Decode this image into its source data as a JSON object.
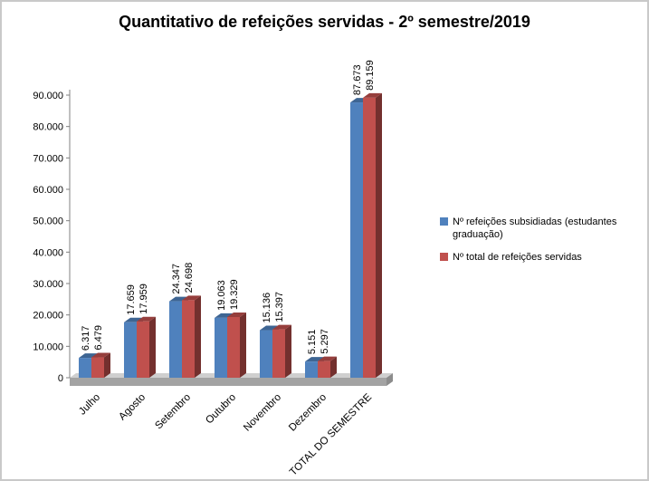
{
  "title": "Quantitativo de refeições servidas - 2º semestre/2019",
  "chart_data": {
    "type": "bar",
    "style": "3d-clustered-column",
    "title": "Quantitativo de refeições servidas - 2º semestre/2019",
    "categories": [
      "Julho",
      "Agosto",
      "Setembro",
      "Outubro",
      "Novembro",
      "Dezembro",
      "TOTAL DO SEMESTRE"
    ],
    "series": [
      {
        "name": "Nº refeições subsidiadas (estudantes graduação)",
        "color": "#4F81BD",
        "values": [
          6317,
          17659,
          24347,
          19063,
          15136,
          5151,
          87673
        ],
        "labels": [
          "6.317",
          "17.659",
          "24.347",
          "19.063",
          "15.136",
          "5.151",
          "87.673"
        ]
      },
      {
        "name": "Nº total  de refeições servidas",
        "color": "#C0504D",
        "values": [
          6479,
          17959,
          24698,
          19329,
          15397,
          5297,
          89159
        ],
        "labels": [
          "6.479",
          "17.959",
          "24.698",
          "19.329",
          "15.397",
          "5.297",
          "89.159"
        ]
      }
    ],
    "ylim": [
      0,
      90000
    ],
    "ytick_step": 10000,
    "ytick_labels": [
      "0",
      "10.000",
      "20.000",
      "30.000",
      "40.000",
      "50.000",
      "60.000",
      "70.000",
      "80.000",
      "90.000"
    ],
    "xlabel": "",
    "ylabel": "",
    "grid": false,
    "legend_position": "right",
    "data_labels_rotation": -90,
    "category_labels_rotation": -45
  }
}
